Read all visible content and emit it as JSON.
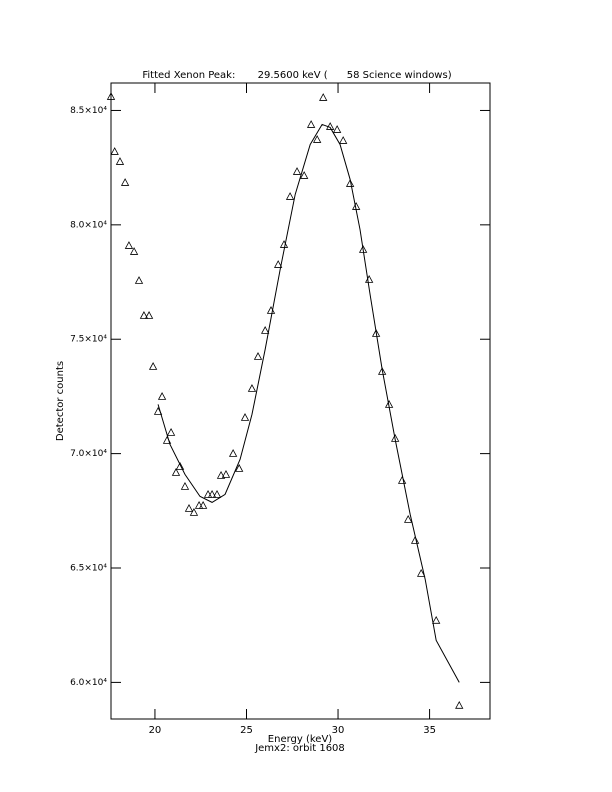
{
  "chart_data": {
    "type": "scatter",
    "title": "Fitted Xenon Peak:       29.5600 keV (      58 Science windows)",
    "x_label": "Energy (keV)",
    "subtitle": "Jemx2: orbit 1608",
    "y_label": "Detector counts",
    "xlim": [
      17.6,
      38.3
    ],
    "ylim": [
      58400,
      86200
    ],
    "xticks": [
      20,
      25,
      30,
      35
    ],
    "yticks": [
      {
        "value": 60000,
        "label": "6.0×10⁴"
      },
      {
        "value": 65000,
        "label": "6.5×10⁴"
      },
      {
        "value": 70000,
        "label": "7.0×10⁴"
      },
      {
        "value": 75000,
        "label": "7.5×10⁴"
      },
      {
        "value": 80000,
        "label": "8.0×10⁴"
      },
      {
        "value": 85000,
        "label": "8.5×10⁴"
      }
    ],
    "series": [
      {
        "mode": "markers",
        "marker": "triangle",
        "color": "#000000",
        "x": [
          17.6,
          17.8,
          18.09,
          18.37,
          18.58,
          18.86,
          19.13,
          19.4,
          19.68,
          19.9,
          20.17,
          20.39,
          20.66,
          20.88,
          21.15,
          21.37,
          21.64,
          21.86,
          22.13,
          22.41,
          22.63,
          22.9,
          23.12,
          23.39,
          23.61,
          23.88,
          24.27,
          24.6,
          24.92,
          25.3,
          25.63,
          26.02,
          26.34,
          26.73,
          27.05,
          27.38,
          27.76,
          28.15,
          28.53,
          28.86,
          29.19,
          29.57,
          29.95,
          30.28,
          30.66,
          30.99,
          31.37,
          31.7,
          32.08,
          32.41,
          32.79,
          33.12,
          33.5,
          33.83,
          34.21,
          34.54,
          35.36,
          36.62
        ],
        "values": [
          85612,
          83208,
          82771,
          81853,
          79100,
          78838,
          77571,
          76042,
          76042,
          73813,
          71847,
          72502,
          70579,
          70930,
          69180,
          69443,
          68569,
          67607,
          67433,
          67739,
          67739,
          68219,
          68219,
          68219,
          69050,
          69093,
          70010,
          69355,
          71584,
          72851,
          74250,
          75386,
          76260,
          78270,
          79144,
          81242,
          82334,
          82159,
          84388,
          83733,
          85568,
          84301,
          84170,
          83689,
          81810,
          80805,
          78926,
          77615,
          75255,
          73594,
          72152,
          70667,
          68831,
          67127,
          66209,
          64767,
          62713,
          58998
        ]
      },
      {
        "mode": "line",
        "color": "#000000",
        "x": [
          20.17,
          20.82,
          21.64,
          22.46,
          23.12,
          23.83,
          24.65,
          25.3,
          26.02,
          26.84,
          27.66,
          28.48,
          29.13,
          29.57,
          30.11,
          30.66,
          31.2,
          31.75,
          32.41,
          33.12,
          33.94,
          34.76,
          35.36,
          36.62
        ],
        "values": [
          72152,
          70404,
          69093,
          68132,
          67869,
          68219,
          69749,
          71715,
          74556,
          78052,
          81329,
          83514,
          84388,
          84257,
          83514,
          81985,
          79800,
          76959,
          73682,
          70623,
          67345,
          64505,
          61839,
          60003
        ]
      }
    ]
  }
}
